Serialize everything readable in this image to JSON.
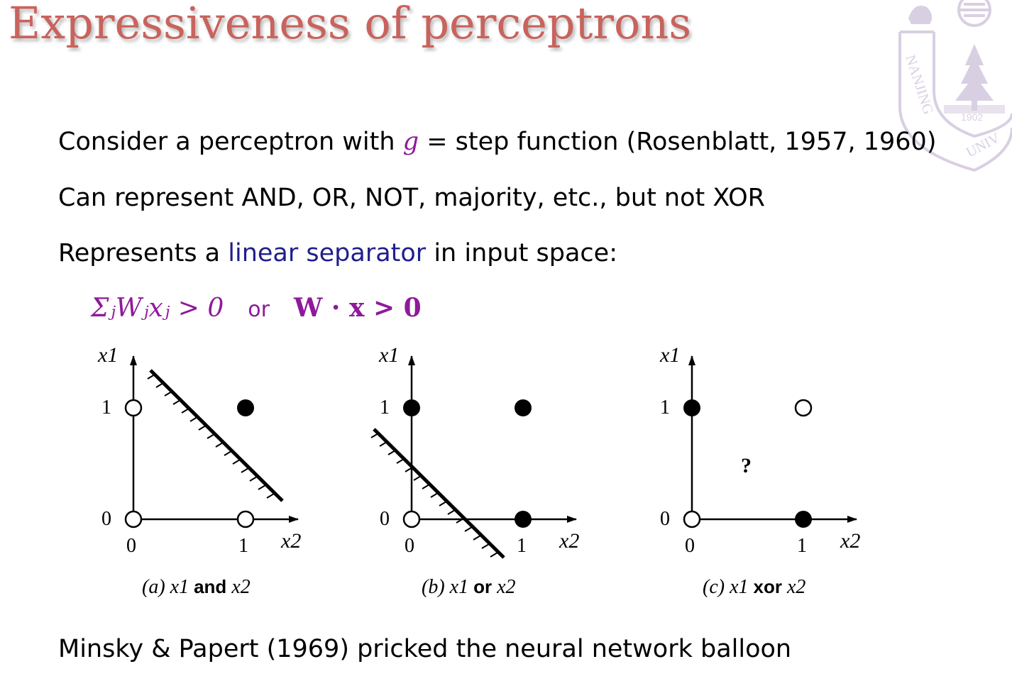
{
  "slide": {
    "title": "Expressiveness of perceptrons"
  },
  "body": {
    "line1": {
      "prefix": "Consider a perceptron with ",
      "g_symbol": "g",
      "equals": " = ",
      "suffix": "step function (Rosenblatt, 1957, 1960)"
    },
    "line2": "Can represent AND, OR, NOT, majority, etc., but not XOR",
    "line3": {
      "prefix": "Represents a ",
      "highlight": "linear separator",
      "suffix": " in input space:"
    },
    "formula": {
      "sum_expression": "ΣⱼWⱼxⱼ > 0",
      "or_word": "or",
      "vector_expression": "W · x > 0"
    },
    "footer": "Minsky & Papert (1969) pricked the neural network balloon"
  },
  "figures": [
    {
      "id": "a",
      "y_axis_label": "x1",
      "x_axis_label": "x2",
      "x_ticks": [
        "0",
        "1"
      ],
      "y_ticks": [
        "0",
        "1"
      ],
      "caption_prefix": "(a) x1 ",
      "caption_op": "and",
      "caption_suffix": " x2"
    },
    {
      "id": "b",
      "y_axis_label": "x1",
      "x_axis_label": "x2",
      "x_ticks": [
        "0",
        "1"
      ],
      "y_ticks": [
        "0",
        "1"
      ],
      "caption_prefix": "(b) x1 ",
      "caption_op": "or",
      "caption_suffix": " x2"
    },
    {
      "id": "c",
      "y_axis_label": "x1",
      "x_axis_label": "x2",
      "x_ticks": [
        "0",
        "1"
      ],
      "y_ticks": [
        "0",
        "1"
      ],
      "caption_prefix": "(c) x1 ",
      "caption_op": "xor",
      "caption_suffix": " x2",
      "question_mark": "?"
    }
  ],
  "logo": {
    "year": "1902",
    "arc_text_left": "NANJING",
    "arc_text_right": "UNIV"
  },
  "colors": {
    "title": "#c8635d",
    "math": "#8e1a9a",
    "highlight": "#1f1f8c",
    "logo": "#d9cfe2"
  }
}
